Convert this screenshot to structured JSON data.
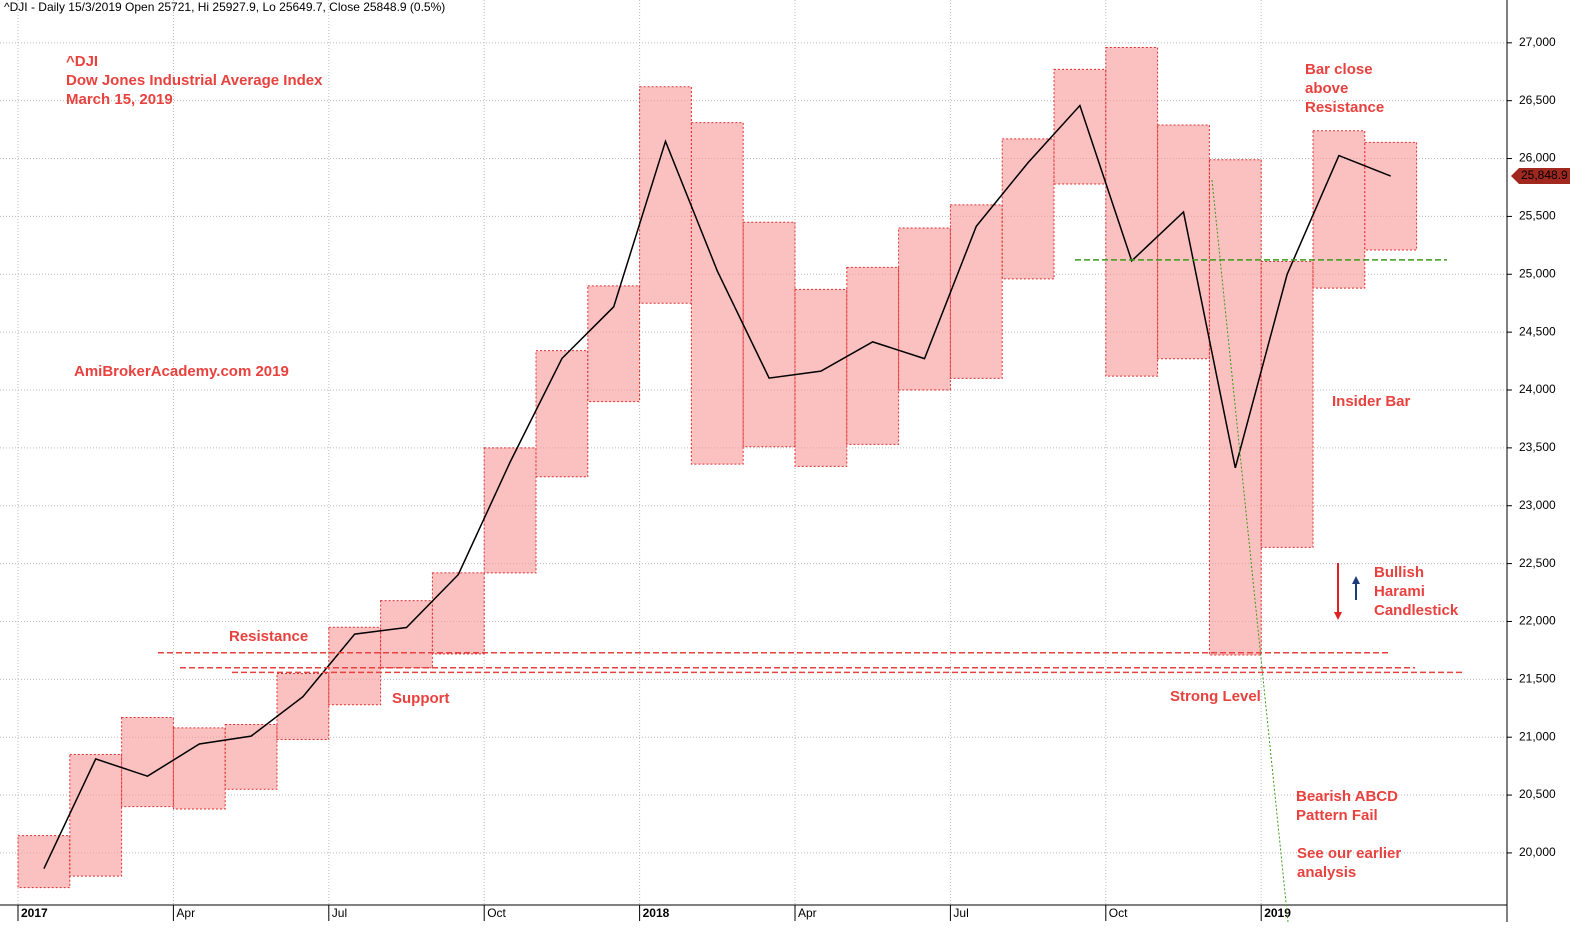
{
  "chart_data": {
    "type": "range-box",
    "header": "^DJI - Daily 15/3/2019 Open 25721, Hi 25927.9, Lo 25649.7, Close 25848.9 (0.5%)",
    "last_price": {
      "value": 25848.9,
      "label": "25,848.9"
    },
    "categories": [
      "2017",
      null,
      null,
      "Apr",
      null,
      null,
      "Jul",
      null,
      null,
      "Oct",
      null,
      null,
      "2018",
      null,
      null,
      "Apr",
      null,
      null,
      "Jul",
      null,
      null,
      "Oct",
      null,
      null,
      "2019",
      null,
      null
    ],
    "series": [
      {
        "name": "High",
        "color": "#e03030",
        "values": [
          20150,
          20850,
          21170,
          21080,
          21110,
          21550,
          21950,
          22180,
          22420,
          23500,
          24340,
          24900,
          26620,
          26310,
          25450,
          24870,
          25060,
          25400,
          25600,
          26170,
          26770,
          26960,
          26290,
          25990,
          25110,
          26240,
          26140
        ]
      },
      {
        "name": "Low",
        "color": "#e03030",
        "values": [
          19700,
          19800,
          20400,
          20380,
          20550,
          20980,
          21280,
          21600,
          21720,
          22420,
          23250,
          23900,
          24750,
          23360,
          23510,
          23340,
          23530,
          24000,
          24100,
          24960,
          25780,
          24120,
          24270,
          21710,
          22640,
          24880,
          25210
        ]
      },
      {
        "name": "Close",
        "color": "#000000",
        "values": [
          19864,
          20812,
          20663,
          20941,
          21009,
          21350,
          21891,
          21948,
          22405,
          23377,
          24272,
          24719,
          26149,
          25029,
          24103,
          24163,
          24416,
          24271,
          25415,
          25965,
          26458,
          25116,
          25538,
          23327,
          24999,
          26026,
          25849
        ]
      }
    ],
    "ylim": [
      19550,
      27370
    ],
    "yticks": [
      {
        "value": 20000,
        "label": "20,000"
      },
      {
        "value": 20500,
        "label": "20,500"
      },
      {
        "value": 21000,
        "label": "21,000"
      },
      {
        "value": 21500,
        "label": "21,500"
      },
      {
        "value": 22000,
        "label": "22,000"
      },
      {
        "value": 22500,
        "label": "22,500"
      },
      {
        "value": 23000,
        "label": "23,000"
      },
      {
        "value": 23500,
        "label": "23,500"
      },
      {
        "value": 24000,
        "label": "24,000"
      },
      {
        "value": 24500,
        "label": "24,500"
      },
      {
        "value": 25000,
        "label": "25,000"
      },
      {
        "value": 25500,
        "label": "25,500"
      },
      {
        "value": 26000,
        "label": "26,000"
      },
      {
        "value": 26500,
        "label": "26,500"
      },
      {
        "value": 27000,
        "label": "27,000"
      }
    ],
    "grid": true,
    "levels": [
      {
        "value": 21730,
        "color": "#e8423f"
      },
      {
        "value": 21600,
        "color": "#e8423f"
      },
      {
        "value": 21560,
        "color": "#e8423f"
      },
      {
        "value": 25124,
        "color": "#3a9a1a"
      }
    ],
    "annotations": [
      [
        "^DJI",
        "Dow Jones Industrial Average Index",
        "March 15, 2019"
      ],
      [
        "AmiBrokerAcademy.com  2019"
      ],
      [
        "Resistance"
      ],
      [
        "Support"
      ],
      [
        "Strong Level"
      ],
      [
        "Bar close",
        "above",
        "Resistance"
      ],
      [
        "Insider Bar"
      ],
      [
        "Bullish",
        "Harami",
        "Candlestick"
      ],
      [
        "Bearish ABCD",
        "Pattern Fail"
      ],
      [
        "See our earlier",
        "analysis"
      ]
    ]
  }
}
